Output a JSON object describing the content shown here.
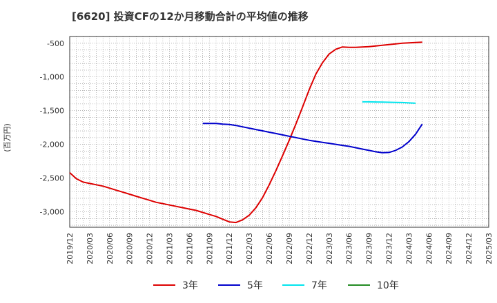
{
  "title": "[6620]  投資CFの12か月移動合計の平均値の推移",
  "chart_data": {
    "type": "line",
    "title": "[6620]  投資CFの12か月移動合計の平均値の推移",
    "ylabel": "(百万円)",
    "xlabel": "",
    "ylim": [
      -3230,
      -400
    ],
    "yticks": [
      -500,
      -1000,
      -1500,
      -2000,
      -2500,
      -3000
    ],
    "ytick_labels": [
      "-500",
      "-1,000",
      "-1,500",
      "-2,000",
      "-2,500",
      "-3,000"
    ],
    "xticks": [
      "2019/12",
      "2020/03",
      "2020/06",
      "2020/09",
      "2020/12",
      "2021/03",
      "2021/06",
      "2021/09",
      "2021/12",
      "2022/03",
      "2022/06",
      "2022/09",
      "2022/12",
      "2023/03",
      "2023/06",
      "2023/09",
      "2023/12",
      "2024/03",
      "2024/06",
      "2024/09",
      "2024/12",
      "2025/03"
    ],
    "grid": true,
    "legend_position": "bottom",
    "series": [
      {
        "name": "3年",
        "color": "#dd0000",
        "start": "2019/12",
        "values": [
          -2420,
          -2510,
          -2560,
          -2580,
          -2600,
          -2620,
          -2650,
          -2680,
          -2710,
          -2740,
          -2770,
          -2800,
          -2830,
          -2860,
          -2880,
          -2900,
          -2920,
          -2940,
          -2960,
          -2980,
          -3010,
          -3040,
          -3070,
          -3110,
          -3150,
          -3160,
          -3120,
          -3050,
          -2940,
          -2790,
          -2600,
          -2390,
          -2170,
          -1940,
          -1700,
          -1450,
          -1190,
          -960,
          -790,
          -660,
          -590,
          -555,
          -560,
          -560,
          -555,
          -550,
          -540,
          -530,
          -520,
          -510,
          -500,
          -495,
          -490,
          -485
        ]
      },
      {
        "name": "5年",
        "color": "#0000cc",
        "start": "2021/08",
        "values": [
          -1690,
          -1690,
          -1690,
          -1700,
          -1705,
          -1720,
          -1740,
          -1760,
          -1780,
          -1800,
          -1820,
          -1840,
          -1860,
          -1880,
          -1900,
          -1920,
          -1940,
          -1955,
          -1970,
          -1985,
          -2000,
          -2015,
          -2030,
          -2050,
          -2070,
          -2090,
          -2110,
          -2125,
          -2120,
          -2090,
          -2040,
          -1960,
          -1850,
          -1700
        ]
      },
      {
        "name": "7年",
        "color": "#00e5ee",
        "start": "2023/08",
        "values": [
          -1370,
          -1370,
          -1372,
          -1374,
          -1376,
          -1378,
          -1380,
          -1385,
          -1390
        ]
      },
      {
        "name": "10年",
        "color": "#228b22",
        "start": "",
        "values": []
      }
    ]
  }
}
